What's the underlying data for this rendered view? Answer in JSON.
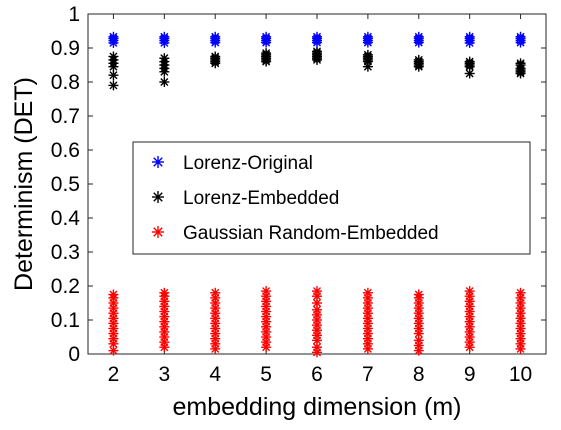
{
  "chart_data": {
    "type": "scatter",
    "title": "",
    "xlabel": "embedding dimension (m)",
    "ylabel": "Determinism (DET)",
    "xlim": [
      1.5,
      10.5
    ],
    "ylim": [
      0,
      1
    ],
    "xticks": [
      "2",
      "3",
      "4",
      "5",
      "6",
      "7",
      "8",
      "9",
      "10"
    ],
    "yticks": [
      "0",
      "0.1",
      "0.2",
      "0.3",
      "0.4",
      "0.5",
      "0.6",
      "0.7",
      "0.8",
      "0.9",
      "1"
    ],
    "grid": false,
    "legend_position": "center",
    "series": [
      {
        "name": "Lorenz-Original",
        "color": "#0000ff",
        "marker": "asterisk",
        "x": [
          2,
          2,
          2,
          2,
          3,
          3,
          3,
          3,
          4,
          4,
          4,
          4,
          5,
          5,
          5,
          5,
          6,
          6,
          6,
          6,
          7,
          7,
          7,
          7,
          8,
          8,
          8,
          8,
          9,
          9,
          9,
          9,
          10,
          10,
          10,
          10
        ],
        "y": [
          0.915,
          0.922,
          0.928,
          0.933,
          0.915,
          0.922,
          0.928,
          0.933,
          0.916,
          0.922,
          0.928,
          0.933,
          0.916,
          0.922,
          0.928,
          0.933,
          0.916,
          0.922,
          0.928,
          0.933,
          0.916,
          0.922,
          0.928,
          0.933,
          0.916,
          0.922,
          0.928,
          0.933,
          0.915,
          0.922,
          0.928,
          0.933,
          0.916,
          0.922,
          0.928,
          0.933
        ]
      },
      {
        "name": "Lorenz-Embedded",
        "color": "#000000",
        "marker": "asterisk",
        "x": [
          2,
          2,
          2,
          2,
          2,
          2,
          3,
          3,
          3,
          3,
          3,
          3,
          4,
          4,
          4,
          4,
          4,
          5,
          5,
          5,
          5,
          5,
          5,
          6,
          6,
          6,
          6,
          6,
          6,
          7,
          7,
          7,
          7,
          7,
          7,
          8,
          8,
          8,
          8,
          8,
          9,
          9,
          9,
          9,
          9,
          10,
          10,
          10,
          10,
          10,
          10
        ],
        "y": [
          0.79,
          0.82,
          0.845,
          0.855,
          0.865,
          0.875,
          0.8,
          0.83,
          0.84,
          0.85,
          0.86,
          0.87,
          0.855,
          0.86,
          0.865,
          0.87,
          0.875,
          0.86,
          0.865,
          0.87,
          0.875,
          0.88,
          0.885,
          0.865,
          0.87,
          0.875,
          0.88,
          0.885,
          0.89,
          0.845,
          0.86,
          0.865,
          0.87,
          0.875,
          0.88,
          0.845,
          0.85,
          0.855,
          0.86,
          0.865,
          0.825,
          0.845,
          0.85,
          0.855,
          0.86,
          0.825,
          0.83,
          0.835,
          0.84,
          0.85,
          0.855
        ]
      },
      {
        "name": "Gaussian Random-Embedded",
        "color": "#ff0000",
        "marker": "asterisk",
        "x": [
          2,
          2,
          2,
          2,
          2,
          2,
          2,
          2,
          2,
          2,
          2,
          2,
          3,
          3,
          3,
          3,
          3,
          3,
          3,
          3,
          3,
          3,
          3,
          3,
          4,
          4,
          4,
          4,
          4,
          4,
          4,
          4,
          4,
          4,
          4,
          4,
          5,
          5,
          5,
          5,
          5,
          5,
          5,
          5,
          5,
          5,
          5,
          5,
          6,
          6,
          6,
          6,
          6,
          6,
          6,
          6,
          6,
          6,
          6,
          6,
          7,
          7,
          7,
          7,
          7,
          7,
          7,
          7,
          7,
          7,
          7,
          7,
          8,
          8,
          8,
          8,
          8,
          8,
          8,
          8,
          8,
          8,
          8,
          8,
          9,
          9,
          9,
          9,
          9,
          9,
          9,
          9,
          9,
          9,
          9,
          9,
          10,
          10,
          10,
          10,
          10,
          10,
          10,
          10,
          10,
          10,
          10,
          10
        ],
        "y": [
          0.01,
          0.03,
          0.045,
          0.06,
          0.075,
          0.09,
          0.105,
          0.12,
          0.135,
          0.15,
          0.165,
          0.175,
          0.02,
          0.035,
          0.05,
          0.065,
          0.08,
          0.095,
          0.11,
          0.125,
          0.14,
          0.155,
          0.17,
          0.18,
          0.015,
          0.03,
          0.045,
          0.06,
          0.075,
          0.09,
          0.105,
          0.12,
          0.135,
          0.15,
          0.165,
          0.18,
          0.02,
          0.035,
          0.05,
          0.065,
          0.08,
          0.095,
          0.11,
          0.125,
          0.14,
          0.155,
          0.17,
          0.185,
          0.005,
          0.02,
          0.04,
          0.055,
          0.07,
          0.085,
          0.1,
          0.115,
          0.13,
          0.15,
          0.17,
          0.185,
          0.015,
          0.03,
          0.045,
          0.06,
          0.075,
          0.09,
          0.105,
          0.12,
          0.135,
          0.15,
          0.165,
          0.18,
          0.01,
          0.025,
          0.04,
          0.06,
          0.075,
          0.09,
          0.105,
          0.12,
          0.135,
          0.15,
          0.165,
          0.175,
          0.02,
          0.035,
          0.05,
          0.065,
          0.08,
          0.095,
          0.11,
          0.125,
          0.14,
          0.155,
          0.17,
          0.185,
          0.015,
          0.03,
          0.045,
          0.06,
          0.075,
          0.09,
          0.105,
          0.12,
          0.135,
          0.15,
          0.165,
          0.18
        ]
      }
    ]
  }
}
